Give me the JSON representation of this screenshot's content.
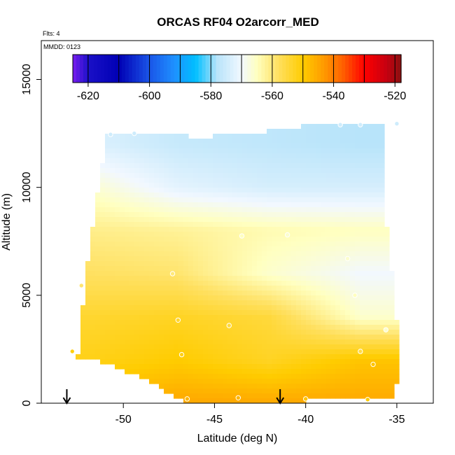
{
  "chart_data": {
    "type": "heatmap",
    "title": "ORCAS RF04 O2arcorr_MED",
    "flights_label": "Flts: 4",
    "date_label": "MMDD: 0123",
    "xlabel": "Latitude (deg N)",
    "ylabel": "Altitude (m)",
    "xlim": [
      -54.5,
      -33.0
    ],
    "ylim": [
      0,
      16800
    ],
    "x_ticks": [
      -50,
      -45,
      -40,
      -35
    ],
    "x_tick_labels": [
      "-50",
      "-45",
      "-40",
      "-35"
    ],
    "y_ticks": [
      0,
      5000,
      10000,
      15000
    ],
    "y_tick_labels": [
      "0",
      "5000",
      "10000",
      "15000"
    ],
    "colorbar": {
      "range": [
        -625,
        -518
      ],
      "ticks": [
        -620,
        -600,
        -580,
        -560,
        -540,
        -520
      ],
      "tick_labels": [
        "-620",
        "-600",
        "-580",
        "-560",
        "-540",
        "-520"
      ],
      "boundaries": [
        -625,
        -620,
        -610,
        -600,
        -590,
        -580,
        -570,
        -560,
        -550,
        -540,
        -530,
        -520,
        -518
      ],
      "colors": [
        {
          "v": -625,
          "c": "#7a1df0"
        },
        {
          "v": -620,
          "c": "#1a10c8"
        },
        {
          "v": -610,
          "c": "#0000b4"
        },
        {
          "v": -600,
          "c": "#1a55e8"
        },
        {
          "v": -592,
          "c": "#1e90ff"
        },
        {
          "v": -585,
          "c": "#00bfff"
        },
        {
          "v": -578,
          "c": "#b8e4fa"
        },
        {
          "v": -570,
          "c": "#f2f8ff"
        },
        {
          "v": -565,
          "c": "#ffffc0"
        },
        {
          "v": -558,
          "c": "#ffe060"
        },
        {
          "v": -550,
          "c": "#ffcc00"
        },
        {
          "v": -543,
          "c": "#ff9900"
        },
        {
          "v": -537,
          "c": "#ff6000"
        },
        {
          "v": -530,
          "c": "#ff0000"
        },
        {
          "v": -523,
          "c": "#c80010"
        },
        {
          "v": -518,
          "c": "#8b1010"
        }
      ]
    },
    "field_outline": {
      "latitude": [
        -52.6,
        -52.4,
        -52.3,
        -51.8,
        -50.9,
        -47.5,
        -46.2,
        -44.0,
        -39.5,
        -36.4,
        -36.3,
        -35.8,
        -35.5,
        -35.2,
        -35.1,
        -34.9,
        -35.1,
        -37.8,
        -40.8,
        -44.5,
        -46.6,
        -49.3,
        -50.9,
        -51.2,
        -51.5,
        -52.2
      ],
      "altitude": [
        2200,
        2400,
        4000,
        7500,
        12500,
        12500,
        12350,
        12400,
        12900,
        12900,
        13050,
        13050,
        7000,
        5900,
        5500,
        1700,
        200,
        150,
        100,
        100,
        100,
        1300,
        1800,
        1850,
        2000,
        2050
      ]
    },
    "colour_field": {
      "latitude": [
        -52,
        -47,
        -42,
        -37
      ],
      "altitude": [
        0,
        2000,
        4000,
        6000,
        8000,
        10000,
        12000
      ],
      "o2arcorr": [
        [
          -548,
          -545,
          -545,
          -545
        ],
        [
          -552,
          -550,
          -553,
          -549
        ],
        [
          -554,
          -553,
          -555,
          -566
        ],
        [
          -558,
          -559,
          -566,
          -570
        ],
        [
          -561,
          -562,
          -564,
          -565
        ],
        [
          -566,
          -572,
          -574,
          -574
        ],
        [
          -573,
          -576,
          -577,
          -578
        ]
      ]
    },
    "sample_points": {
      "latitude": [
        -50.7,
        -49.4,
        -38.1,
        -37.0,
        -35.0,
        -43.5,
        -41.0,
        -52.3,
        -47.3,
        -44.2,
        -37.7,
        -37.3,
        -47.0,
        -46.8,
        -52.8,
        -37.0,
        -36.3,
        -46.5,
        -43.7,
        -40.0,
        -36.6,
        -35.6
      ],
      "altitude": [
        12450,
        12500,
        12900,
        12900,
        12950,
        7750,
        7800,
        5450,
        6000,
        3600,
        6700,
        5000,
        3850,
        2250,
        2400,
        2400,
        1800,
        200,
        250,
        200,
        170,
        3400
      ],
      "o2arcorr": [
        -575,
        -575,
        -575,
        -575,
        -575,
        -565,
        -566,
        -559,
        -560,
        -555,
        -566,
        -565,
        -554,
        -552,
        -551,
        -556,
        -549,
        -547,
        -547,
        -549,
        -550,
        -566
      ]
    },
    "arrow_markers": {
      "latitude": [
        -53.1,
        -41.4
      ]
    }
  }
}
